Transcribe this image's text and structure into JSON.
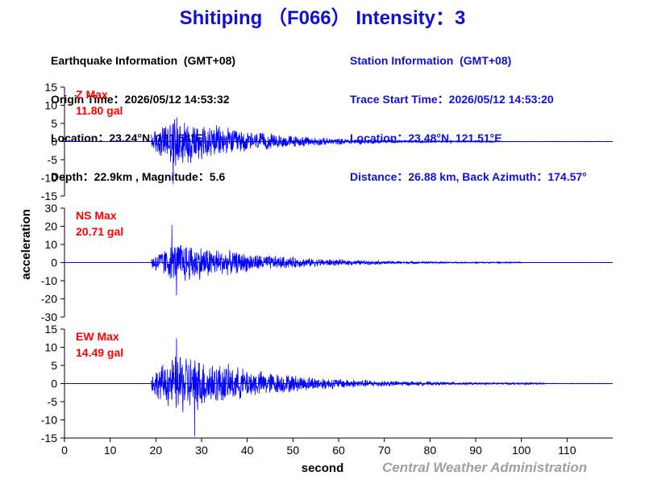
{
  "title": "Shitiping （F066） Intensity：3",
  "earthquake_info": {
    "header": "Earthquake Information  (GMT+08)",
    "origin_time": "Origin Time：2026/05/12 14:53:32",
    "location": "Location：23.24°N, 121.54°E",
    "depth_magnitude": "Depth：22.9km , Magnitude：5.6"
  },
  "station_info": {
    "header": "Station Information  (GMT+08)",
    "trace_start": "Trace Start Time：2026/05/12 14:53:20",
    "location": "Location：23.48°N, 121.51°E",
    "distance": "Distance：26.88 km, Back Azimuth：174.57°"
  },
  "credit": "Central Weather Administration",
  "colors": {
    "title": "#1010d8",
    "trace": "#0000ff",
    "max_label": "#ff0000",
    "axis": "#000000",
    "credit": "#a0a0a0"
  },
  "chart_data": {
    "type": "line",
    "xlabel": "second",
    "ylabel": "acceleration",
    "xlim": [
      0,
      120
    ],
    "xticks": [
      0,
      10,
      20,
      30,
      40,
      50,
      60,
      70,
      80,
      90,
      100,
      110
    ],
    "panels": [
      {
        "name": "Z",
        "max_label": "Z Max",
        "max_value": "11.80 gal",
        "peak": 11.8,
        "ylim": [
          -15,
          15
        ],
        "yticks": [
          15,
          10,
          5,
          0,
          -5,
          -10,
          -15
        ],
        "envelope": {
          "onset": 19.0,
          "peak_time": 24.5,
          "decay_end": 95.0,
          "amplitude": 8.0,
          "negative_peak": -11.8,
          "negative_peak_time": 23.8
        }
      },
      {
        "name": "NS",
        "max_label": "NS Max",
        "max_value": "20.71 gal",
        "peak": 20.71,
        "ylim": [
          -30,
          30
        ],
        "yticks": [
          30,
          20,
          10,
          0,
          -10,
          -20,
          -30
        ],
        "envelope": {
          "onset": 19.0,
          "peak_time": 25.5,
          "decay_end": 100.0,
          "amplitude": 13.0,
          "positive_peak": 20.71,
          "positive_peak_time": 23.5,
          "negative_peak": -18.0,
          "negative_peak_time": 24.5
        }
      },
      {
        "name": "EW",
        "max_label": "EW Max",
        "max_value": "14.49 gal",
        "peak": 14.49,
        "ylim": [
          -15,
          15
        ],
        "yticks": [
          15,
          10,
          5,
          0,
          -5,
          -10,
          -15
        ],
        "envelope": {
          "onset": 19.0,
          "peak_time": 25.5,
          "decay_end": 105.0,
          "amplitude": 9.5,
          "positive_peak": 12.5,
          "positive_peak_time": 24.5,
          "negative_peak": -14.49,
          "negative_peak_time": 28.5
        }
      }
    ]
  }
}
